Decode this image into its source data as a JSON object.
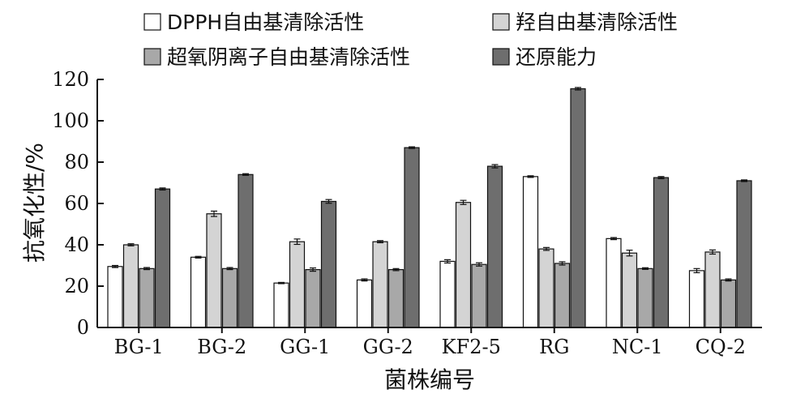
{
  "chart_data": {
    "type": "bar",
    "title": "",
    "xlabel": "菌株编号",
    "ylabel": "抗氧化性/%",
    "ylim": [
      0,
      120
    ],
    "yticks": [
      0,
      20,
      40,
      60,
      80,
      100,
      120
    ],
    "grid": false,
    "legend_position": "top",
    "categories": [
      "BG-1",
      "BG-2",
      "GG-1",
      "GG-2",
      "KF2-5",
      "RG",
      "NC-1",
      "CQ-2"
    ],
    "series": [
      {
        "name": "DPPH自由基清除活性",
        "color": "#ffffff",
        "values": [
          29.5,
          34.0,
          21.5,
          23.0,
          32.0,
          73.0,
          43.0,
          27.5
        ],
        "errors": [
          0.5,
          0.4,
          0.3,
          0.5,
          0.8,
          0.4,
          0.5,
          1.0
        ]
      },
      {
        "name": "羟自由基清除活性",
        "color": "#d4d4d4",
        "values": [
          40.0,
          55.0,
          41.5,
          41.5,
          60.5,
          38.0,
          36.0,
          36.5
        ],
        "errors": [
          0.5,
          1.3,
          1.3,
          0.5,
          1.0,
          0.7,
          1.4,
          1.0
        ]
      },
      {
        "name": "超氧阴离子自由基清除活性",
        "color": "#a8a8a8",
        "values": [
          28.5,
          28.5,
          28.0,
          28.0,
          30.5,
          31.0,
          28.5,
          23.0
        ],
        "errors": [
          0.5,
          0.5,
          0.8,
          0.5,
          0.8,
          0.8,
          0.4,
          0.5
        ]
      },
      {
        "name": "还原能力",
        "color": "#6e6e6e",
        "values": [
          67.0,
          74.0,
          61.0,
          87.0,
          78.0,
          115.5,
          72.5,
          71.0
        ],
        "errors": [
          0.5,
          0.4,
          0.9,
          0.4,
          0.8,
          0.6,
          0.5,
          0.4
        ]
      }
    ]
  }
}
